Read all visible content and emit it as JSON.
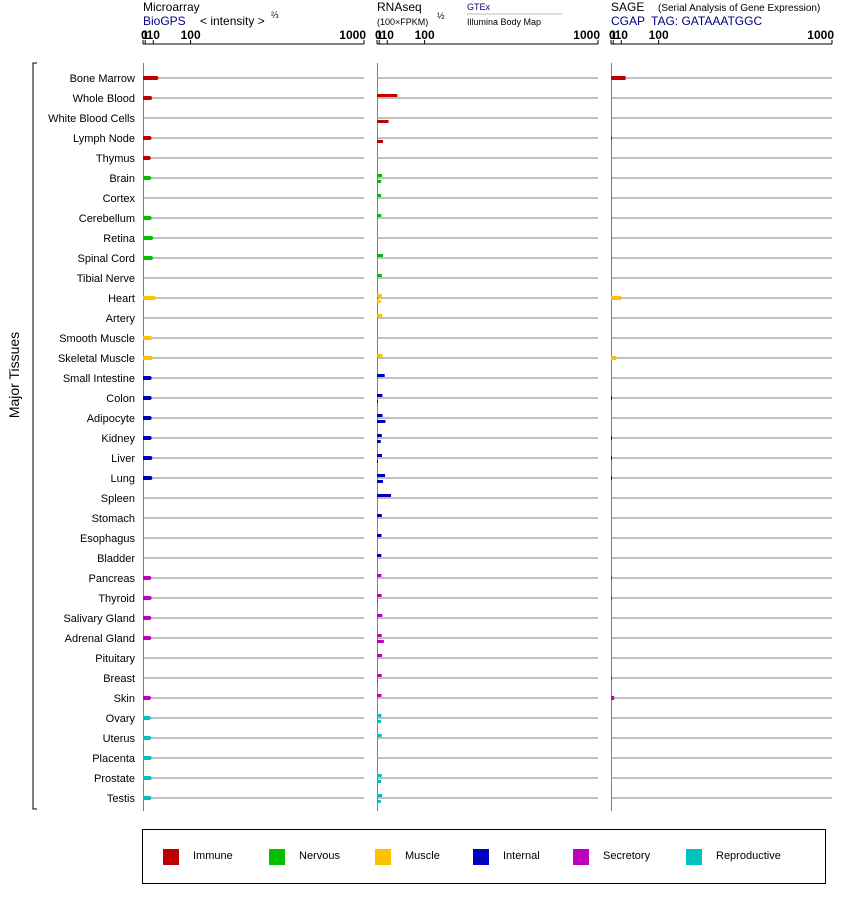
{
  "chart_data": {
    "type": "bar",
    "y_axis_label": "Major Tissues",
    "categories": [
      "Bone Marrow",
      "Whole Blood",
      "White Blood Cells",
      "Lymph Node",
      "Thymus",
      "Brain",
      "Cortex",
      "Cerebellum",
      "Retina",
      "Spinal Cord",
      "Tibial Nerve",
      "Heart",
      "Artery",
      "Smooth Muscle",
      "Skeletal Muscle",
      "Small Intestine",
      "Colon",
      "Adipocyte",
      "Kidney",
      "Liver",
      "Lung",
      "Spleen",
      "Stomach",
      "Esophagus",
      "Bladder",
      "Pancreas",
      "Thyroid",
      "Salivary Gland",
      "Adrenal Gland",
      "Pituitary",
      "Breast",
      "Skin",
      "Ovary",
      "Uterus",
      "Placenta",
      "Prostate",
      "Testis"
    ],
    "category_group": [
      "Immune",
      "Immune",
      "Immune",
      "Immune",
      "Immune",
      "Nervous",
      "Nervous",
      "Nervous",
      "Nervous",
      "Nervous",
      "Nervous",
      "Muscle",
      "Muscle",
      "Muscle",
      "Muscle",
      "Internal",
      "Internal",
      "Internal",
      "Internal",
      "Internal",
      "Internal",
      "Internal",
      "Internal",
      "Internal",
      "Internal",
      "Secretory",
      "Secretory",
      "Secretory",
      "Secretory",
      "Secretory",
      "Secretory",
      "Secretory",
      "Reproductive",
      "Reproductive",
      "Reproductive",
      "Reproductive",
      "Reproductive"
    ],
    "group_colors": {
      "Immune": "#c00000",
      "Nervous": "#00c000",
      "Muscle": "#ffc000",
      "Internal": "#0000c0",
      "Secretory": "#c000c0",
      "Reproductive": "#00c0c0"
    },
    "panels": [
      {
        "title": "Microarray",
        "subtitle_left": "BioGPS",
        "subtitle_right": "< intensity >",
        "subtitle_exponent": "⅔",
        "ticks": [
          "0",
          "1",
          "10",
          "100",
          "1000"
        ],
        "series": [
          {
            "values": [
              15,
              5.8,
              null,
              5,
              4.2,
              4.5,
              null,
              5.2,
              7,
              6.8,
              null,
              11,
              null,
              5.8,
              6.5,
              5.2,
              5.2,
              5.2,
              5.2,
              6,
              6,
              null,
              null,
              null,
              null,
              4.8,
              5.2,
              4.8,
              4.8,
              null,
              null,
              4.5,
              4.2,
              4.5,
              5.2,
              5.2,
              4.8
            ]
          }
        ]
      },
      {
        "title": "RNAseq",
        "subtitle_left": "(100×FPKM)",
        "subtitle_exponent": "½",
        "subtitle_right_top": "GTEx",
        "subtitle_right_bottom": "Illumina Body Map",
        "ticks": [
          "0",
          "1",
          "10",
          "100",
          "1000"
        ],
        "series": [
          {
            "name": "GTEx",
            "values": [
              null,
              28,
              null,
              null,
              null,
              3.5,
              2.5,
              2.7,
              null,
              4.5,
              3.3,
              3.2,
              3.7,
              null,
              3.8,
              6.5,
              3.8,
              4,
              3.3,
              3.4,
              7,
              16,
              3.3,
              2.9,
              2.7,
              2.8,
              3,
              3.8,
              3.1,
              3.5,
              3.1,
              2.9,
              2.8,
              3.1,
              null,
              3.1,
              3.6
            ]
          },
          {
            "name": "Illumina Body Map",
            "values": [
              null,
              null,
              12,
              4.5,
              null,
              2.6,
              null,
              null,
              null,
              null,
              null,
              2.2,
              null,
              null,
              null,
              null,
              0.1,
              7.5,
              2.2,
              0.1,
              4.5,
              null,
              null,
              null,
              null,
              null,
              0.1,
              null,
              5.5,
              null,
              0.1,
              null,
              2.5,
              null,
              null,
              2.5,
              2.2
            ]
          }
        ]
      },
      {
        "title": "SAGE",
        "title_note": "(Serial Analysis of Gene Expression)",
        "subtitle_left": "CGAP",
        "subtitle_right": "TAG: GATAAATGGC",
        "ticks": [
          "0",
          "1",
          "10",
          "100",
          "1000"
        ],
        "series": [
          {
            "values": [
              17,
              null,
              null,
              0.05,
              null,
              0.05,
              0.05,
              0.05,
              0.05,
              0.05,
              null,
              9.5,
              null,
              null,
              3.5,
              null,
              0.05,
              null,
              0.05,
              0.05,
              0.05,
              null,
              null,
              null,
              null,
              0.05,
              0.05,
              null,
              null,
              null,
              0.05,
              1.7,
              null,
              null,
              0.05,
              0.05,
              null
            ]
          }
        ]
      }
    ],
    "legend": [
      "Immune",
      "Nervous",
      "Muscle",
      "Internal",
      "Secretory",
      "Reproductive"
    ]
  }
}
